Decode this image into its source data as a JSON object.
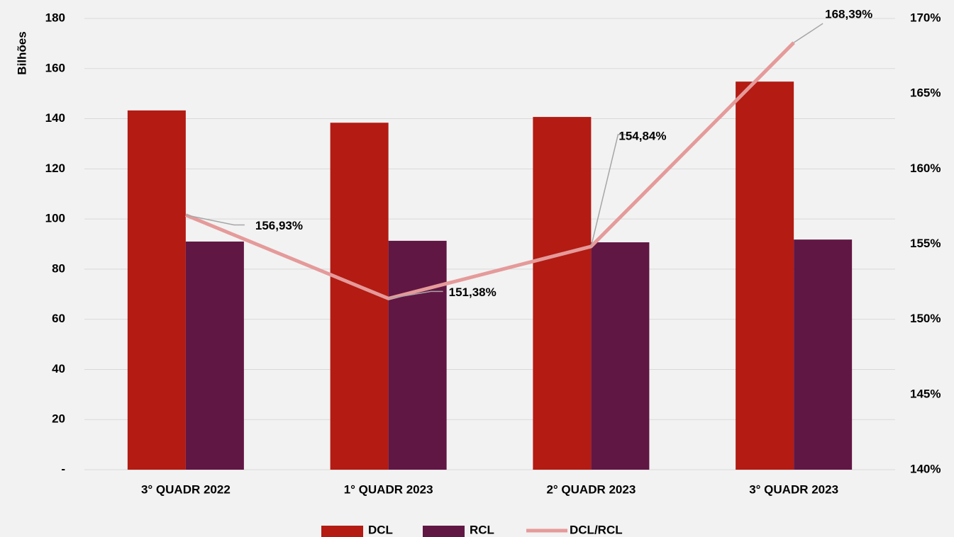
{
  "chart_data": {
    "type": "bar-line",
    "ylabel": "Bilhões",
    "categories": [
      "3° QUADR 2022",
      "1° QUADR 2023",
      "2° QUADR 2023",
      "3° QUADR 2023"
    ],
    "series": [
      {
        "name": "DCL",
        "color": "#b31b13",
        "type": "bar",
        "values": [
          143.3,
          138.4,
          140.7,
          154.8
        ]
      },
      {
        "name": "RCL",
        "color": "#611744",
        "type": "bar",
        "values": [
          91.0,
          91.3,
          90.7,
          91.8
        ]
      },
      {
        "name": "DCL/RCL",
        "color": "#e59a9a",
        "type": "line",
        "axis": "y2",
        "values": [
          156.93,
          151.38,
          154.84,
          168.39
        ],
        "value_labels": [
          "156,93%",
          "151,38%",
          "154,84%",
          "168,39%"
        ]
      }
    ],
    "ylim": [
      0,
      180
    ],
    "yticks": [
      {
        "value": 0,
        "label": "-"
      },
      20,
      40,
      60,
      80,
      100,
      120,
      140,
      160,
      180
    ],
    "y2lim": [
      140,
      170
    ],
    "y2ticks": [
      {
        "value": 140,
        "label": "140%"
      },
      {
        "value": 145,
        "label": "145%"
      },
      {
        "value": 150,
        "label": "150%"
      },
      {
        "value": 155,
        "label": "155%"
      },
      {
        "value": 160,
        "label": "160%"
      },
      {
        "value": 165,
        "label": "165%"
      },
      {
        "value": 170,
        "label": "170%"
      }
    ],
    "grid": true,
    "legend": "bottom"
  }
}
